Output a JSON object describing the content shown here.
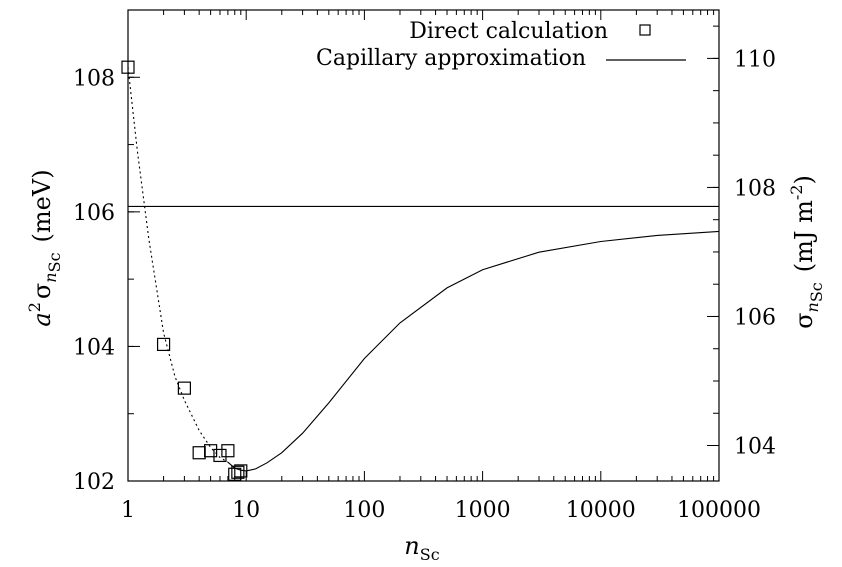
{
  "chart_data": {
    "type": "line",
    "title": "",
    "xscale": "log",
    "xlim": [
      1,
      100000
    ],
    "xticks": [
      {
        "value": 1,
        "label": "1"
      },
      {
        "value": 10,
        "label": "10"
      },
      {
        "value": 100,
        "label": "100"
      },
      {
        "value": 1000,
        "label": "1000"
      },
      {
        "value": 10000,
        "label": "10000"
      },
      {
        "value": 100000,
        "label": "100000"
      }
    ],
    "ylim": [
      102,
      109
    ],
    "yticks": [
      {
        "value": 102,
        "label": "102"
      },
      {
        "value": 104,
        "label": "104"
      },
      {
        "value": 106,
        "label": "106"
      },
      {
        "value": 108,
        "label": "108"
      }
    ],
    "y2lim": [
      103.45,
      110.75
    ],
    "y2ticks": [
      {
        "value": 104,
        "label": "104"
      },
      {
        "value": 106,
        "label": "106"
      },
      {
        "value": 108,
        "label": "108"
      },
      {
        "value": 110,
        "label": "110"
      }
    ],
    "xlabel": {
      "main": "n",
      "sub": "Sc"
    },
    "ylabel": {
      "pre": "a",
      "sup": "2",
      "sigma": "σ",
      "var": "n",
      "sub": "Sc",
      "unit": "(meV)"
    },
    "y2label": {
      "sigma": "σ",
      "var": "n",
      "sub": "Sc",
      "unit_pre": "(mJ m",
      "unit_sup": "-2",
      "unit_post": ")"
    },
    "legend": {
      "position": "top-right",
      "entries": [
        {
          "label": "Direct calculation",
          "marker": "square"
        },
        {
          "label": "Capillary approximation",
          "marker": "line"
        }
      ]
    },
    "series": [
      {
        "name": "Direct calculation",
        "style": "square-markers",
        "points": [
          {
            "x": 1,
            "y": 108.15
          },
          {
            "x": 2,
            "y": 104.03
          },
          {
            "x": 3,
            "y": 103.38
          },
          {
            "x": 4,
            "y": 102.42
          },
          {
            "x": 5,
            "y": 102.45
          },
          {
            "x": 6,
            "y": 102.38
          },
          {
            "x": 7,
            "y": 102.45
          },
          {
            "x": 8,
            "y": 102.1
          },
          {
            "x": 8.5,
            "y": 102.13
          },
          {
            "x": 9,
            "y": 102.15
          }
        ]
      },
      {
        "name": "Capillary approximation",
        "style": "solid-line",
        "points": [
          {
            "x": 7,
            "y": 102.28
          },
          {
            "x": 8,
            "y": 102.19
          },
          {
            "x": 9,
            "y": 102.16
          },
          {
            "x": 10,
            "y": 102.15
          },
          {
            "x": 12,
            "y": 102.18
          },
          {
            "x": 15,
            "y": 102.27
          },
          {
            "x": 20,
            "y": 102.42
          },
          {
            "x": 30,
            "y": 102.71
          },
          {
            "x": 50,
            "y": 103.16
          },
          {
            "x": 100,
            "y": 103.82
          },
          {
            "x": 200,
            "y": 104.35
          },
          {
            "x": 500,
            "y": 104.87
          },
          {
            "x": 1000,
            "y": 105.14
          },
          {
            "x": 3000,
            "y": 105.4
          },
          {
            "x": 10000,
            "y": 105.56
          },
          {
            "x": 30000,
            "y": 105.65
          },
          {
            "x": 100000,
            "y": 105.71
          }
        ]
      },
      {
        "name": "",
        "style": "dotted-line",
        "points": [
          {
            "x": 1,
            "y": 108.15
          },
          {
            "x": 1.2,
            "y": 106.9
          },
          {
            "x": 1.5,
            "y": 105.6
          },
          {
            "x": 2,
            "y": 104.2
          },
          {
            "x": 2.5,
            "y": 103.55
          },
          {
            "x": 3,
            "y": 103.2
          },
          {
            "x": 4,
            "y": 102.75
          },
          {
            "x": 5,
            "y": 102.5
          },
          {
            "x": 6,
            "y": 102.35
          },
          {
            "x": 7,
            "y": 102.28
          }
        ]
      },
      {
        "name": "",
        "style": "horizontal-line",
        "y": 106.08
      }
    ]
  }
}
